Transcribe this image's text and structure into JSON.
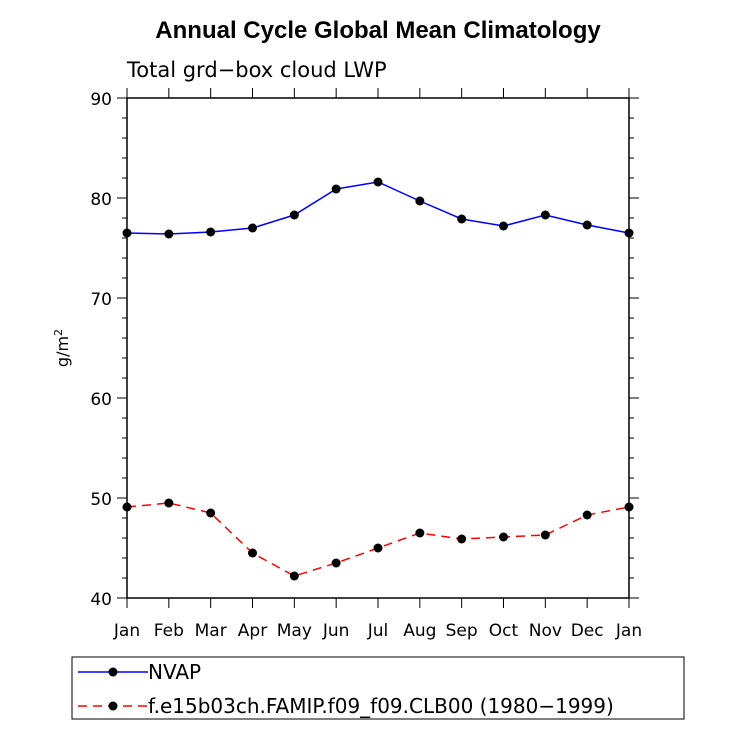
{
  "chart_data": {
    "type": "line",
    "title": "Annual Cycle Global Mean Climatology",
    "subtitle": "Total grd−box cloud LWP",
    "ylabel": "g/m",
    "ylabel_superscript": "2",
    "xlabel": "",
    "categories": [
      "Jan",
      "Feb",
      "Mar",
      "Apr",
      "May",
      "Jun",
      "Jul",
      "Aug",
      "Sep",
      "Oct",
      "Nov",
      "Dec",
      "Jan"
    ],
    "ylim": [
      40,
      90
    ],
    "yticks": [
      40,
      50,
      60,
      70,
      80,
      90
    ],
    "grid": false,
    "legend_position": "bottom",
    "series": [
      {
        "name": "NVAP",
        "color": "#0000ff",
        "dash": "solid",
        "marker": "filled-circle",
        "values": [
          76.5,
          76.4,
          76.6,
          77.0,
          78.3,
          80.9,
          81.6,
          79.7,
          77.9,
          77.2,
          78.3,
          77.3,
          76.5
        ]
      },
      {
        "name": "f.e15b03ch.FAMIP.f09_f09.CLB00 (1980−1999)",
        "color": "#ff0000",
        "dash": "dashed",
        "marker": "filled-circle",
        "values": [
          49.1,
          49.5,
          48.5,
          44.5,
          42.2,
          43.5,
          45.0,
          46.5,
          45.9,
          46.1,
          46.3,
          48.3,
          49.1
        ]
      }
    ]
  }
}
